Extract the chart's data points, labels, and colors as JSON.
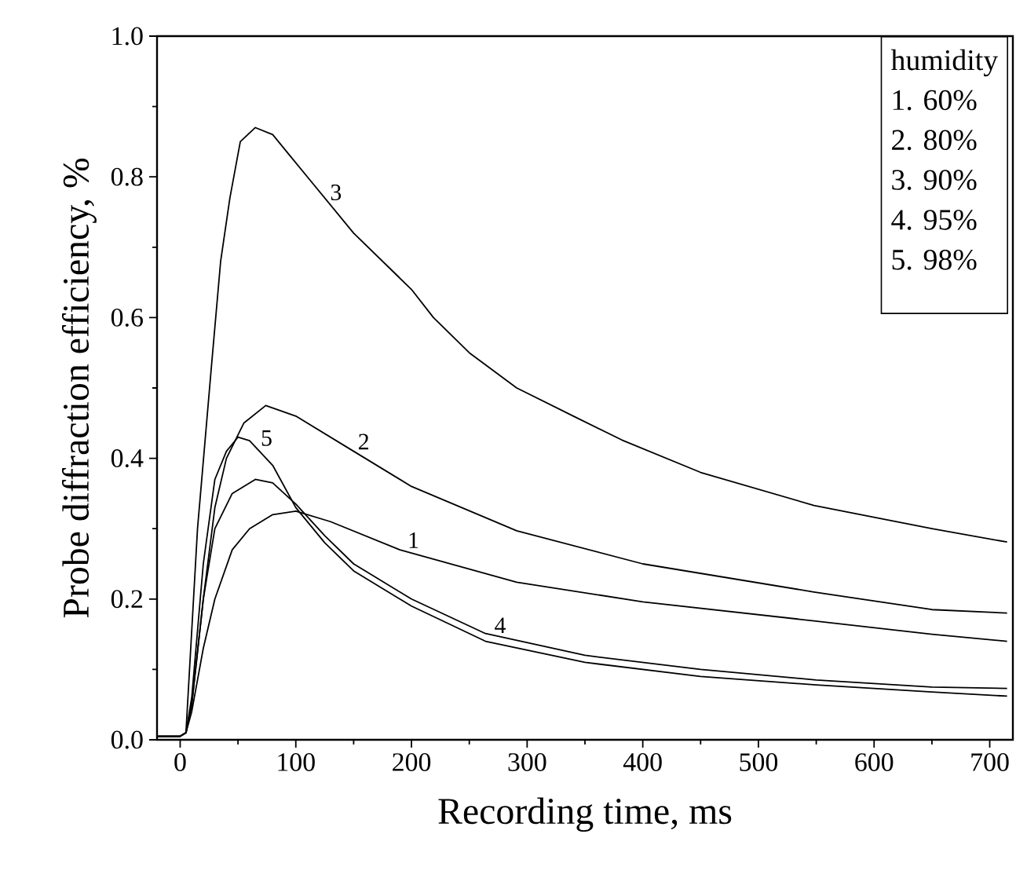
{
  "chart_data": {
    "type": "line",
    "xlabel": "Recording time, ms",
    "ylabel": "Probe diffraction efficiency, %",
    "xlim": [
      -20,
      720
    ],
    "ylim": [
      0,
      1
    ],
    "xticks": [
      0,
      100,
      200,
      300,
      400,
      500,
      600,
      700
    ],
    "yticks": [
      {
        "value": 0,
        "label": "0.0"
      },
      {
        "value": 0.2,
        "label": "0.2"
      },
      {
        "value": 0.4,
        "label": "0.4"
      },
      {
        "value": 0.6,
        "label": "0.6"
      },
      {
        "value": 0.8,
        "label": "0.8"
      },
      {
        "value": 1,
        "label": "1.0"
      }
    ],
    "grid": false,
    "marker": "none",
    "line_style": "solid",
    "series": [
      {
        "color": "#000000",
        "x": [
          -20,
          0,
          5,
          10,
          20,
          30,
          45,
          60,
          80,
          100,
          130,
          190,
          291,
          400,
          548,
          650,
          715
        ],
        "values": [
          0.005,
          0.005,
          0.01,
          0.04,
          0.13,
          0.2,
          0.27,
          0.3,
          0.32,
          0.325,
          0.31,
          0.27,
          0.224,
          0.196,
          0.169,
          0.15,
          0.14
        ]
      },
      {
        "color": "#000000",
        "x": [
          -20,
          0,
          5,
          10,
          20,
          30,
          40,
          55,
          74,
          100,
          150,
          200,
          291,
          400,
          548,
          650,
          715
        ],
        "values": [
          0.005,
          0.005,
          0.01,
          0.05,
          0.2,
          0.33,
          0.4,
          0.45,
          0.475,
          0.46,
          0.41,
          0.36,
          0.297,
          0.25,
          0.21,
          0.185,
          0.18
        ]
      },
      {
        "color": "#000000",
        "x": [
          -20,
          0,
          5,
          15,
          27,
          35,
          43,
          52,
          65,
          80,
          95,
          110,
          150,
          200,
          219,
          250,
          291,
          340,
          382,
          450,
          548,
          650,
          715
        ],
        "values": [
          0.005,
          0.005,
          0.01,
          0.3,
          0.53,
          0.68,
          0.77,
          0.85,
          0.87,
          0.86,
          0.83,
          0.8,
          0.72,
          0.64,
          0.6,
          0.55,
          0.5,
          0.46,
          0.426,
          0.38,
          0.333,
          0.3,
          0.281
        ]
      },
      {
        "color": "#000000",
        "x": [
          -20,
          0,
          5,
          10,
          20,
          30,
          45,
          65,
          80,
          100,
          125,
          150,
          200,
          264,
          350,
          450,
          550,
          650,
          715
        ],
        "values": [
          0.005,
          0.005,
          0.01,
          0.05,
          0.2,
          0.3,
          0.35,
          0.37,
          0.365,
          0.335,
          0.29,
          0.25,
          0.2,
          0.151,
          0.12,
          0.1,
          0.085,
          0.075,
          0.073
        ]
      },
      {
        "color": "#000000",
        "x": [
          -20,
          0,
          5,
          10,
          20,
          30,
          40,
          50,
          60,
          80,
          100,
          125,
          150,
          200,
          264,
          350,
          450,
          550,
          650,
          715
        ],
        "values": [
          0.005,
          0.005,
          0.01,
          0.06,
          0.25,
          0.37,
          0.41,
          0.43,
          0.425,
          0.39,
          0.33,
          0.28,
          0.24,
          0.19,
          0.14,
          0.11,
          0.09,
          0.078,
          0.068,
          0.062
        ]
      }
    ],
    "annotations": [
      {
        "text": "1",
        "x": 195,
        "y": 0.27
      },
      {
        "text": "2",
        "x": 152,
        "y": 0.41
      },
      {
        "text": "3",
        "x": 128,
        "y": 0.764
      },
      {
        "text": "5",
        "x": 68,
        "y": 0.415
      },
      {
        "text": "4",
        "x": 270,
        "y": 0.149
      },
      "humidity",
      "1. 60%",
      "2. 80%",
      "3. 90%",
      "4. 95%",
      "5. 98%"
    ]
  }
}
